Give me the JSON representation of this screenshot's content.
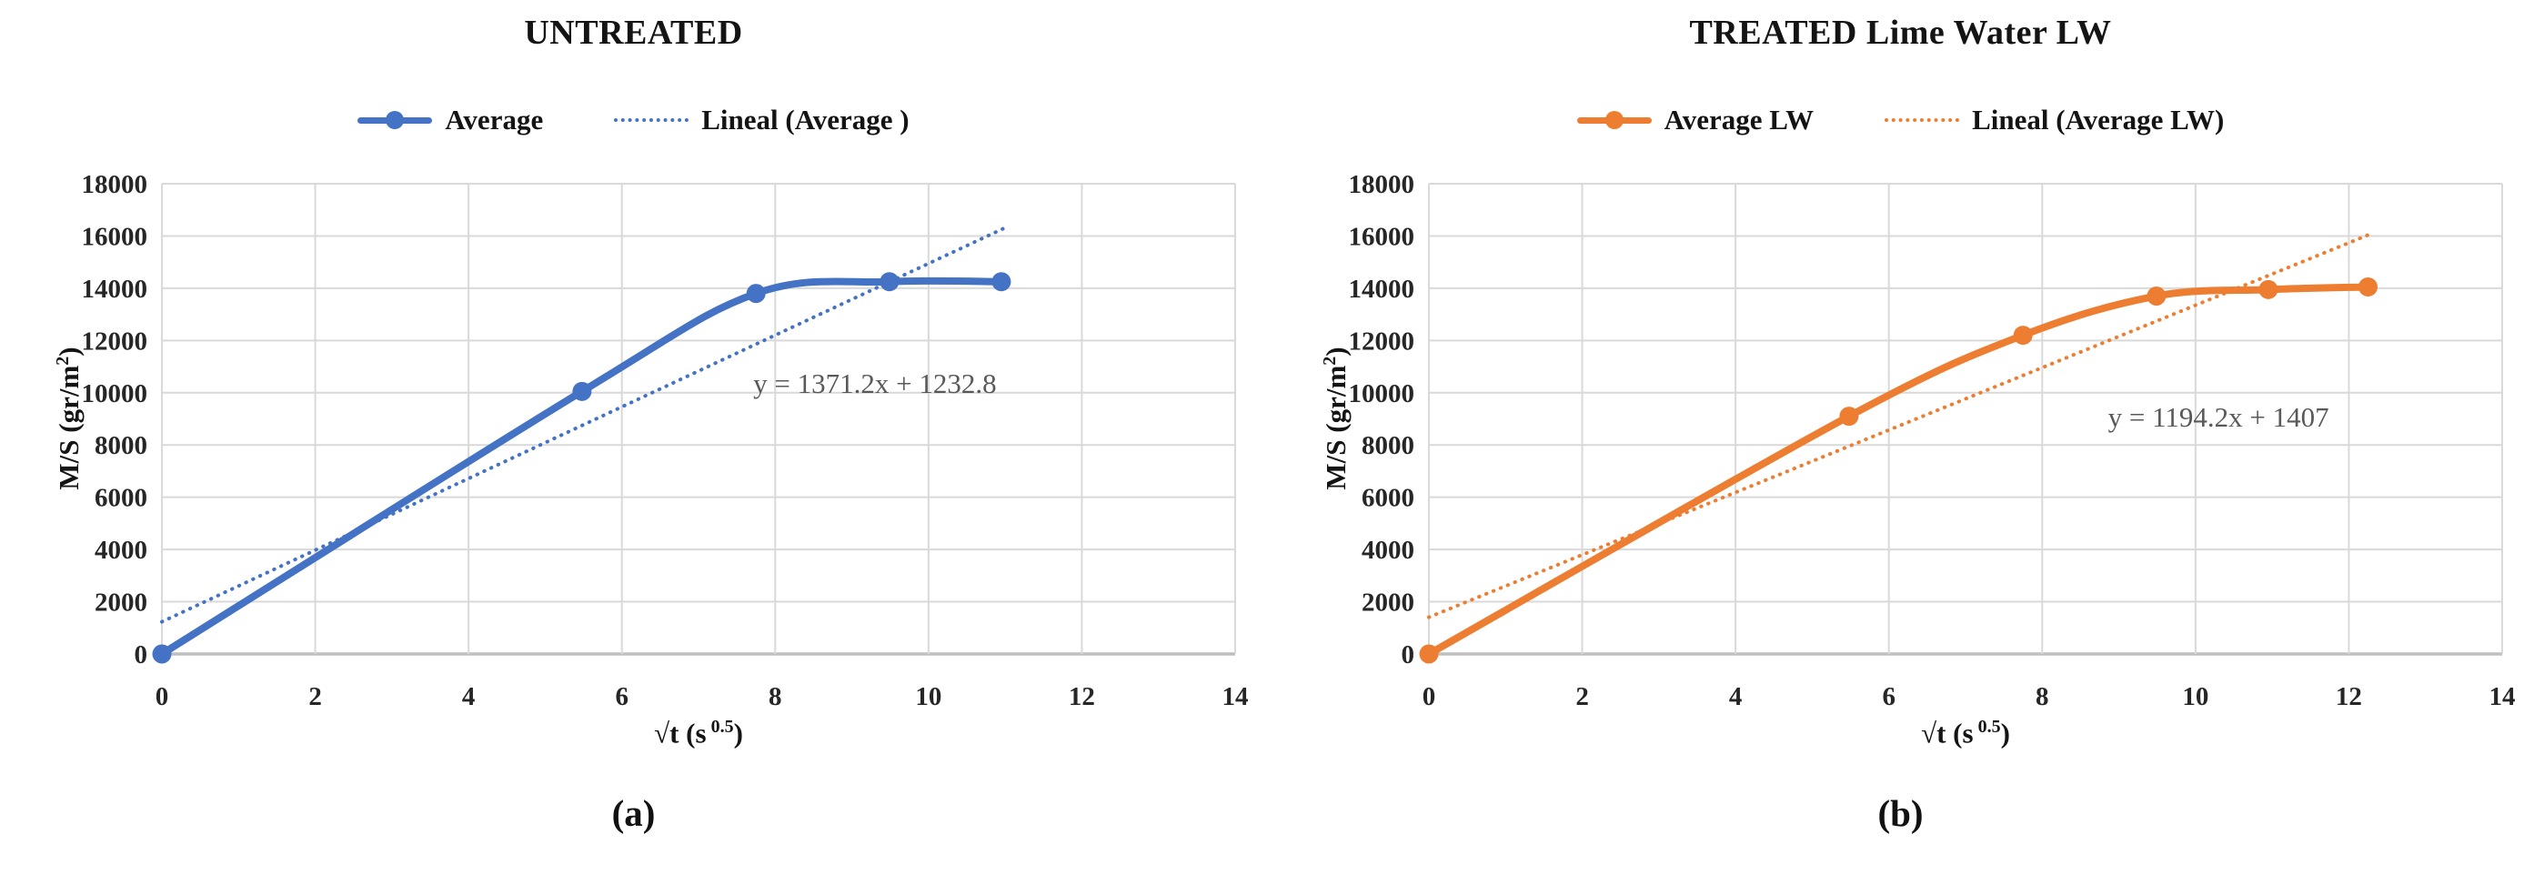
{
  "figure": {
    "background": "#ffffff"
  },
  "chart_data": [
    {
      "type": "line",
      "panel": "a",
      "title": "UNTREATED",
      "caption": "(a)",
      "xlabel": {
        "prefix": "√t (s",
        "sup": "0.5",
        "suffix": ")"
      },
      "ylabel": {
        "prefix": "M/S (gr/m",
        "sup": "2",
        "suffix": ")"
      },
      "xlim": [
        0,
        14
      ],
      "ylim": [
        0,
        18000
      ],
      "xticks": [
        0,
        2,
        4,
        6,
        8,
        10,
        12,
        14
      ],
      "yticks": [
        0,
        2000,
        4000,
        6000,
        8000,
        10000,
        12000,
        14000,
        16000,
        18000
      ],
      "grid": true,
      "legend_position": "top",
      "colors": {
        "series": "#4472C4",
        "grid": "#D9D9D9",
        "axis": "#BFBFBF",
        "annotation": "#595959"
      },
      "series": [
        {
          "name": "Average",
          "marker": "circle",
          "x": [
            0,
            5.48,
            7.75,
            9.49,
            10.95
          ],
          "y": [
            0,
            10050,
            13800,
            14250,
            14250
          ]
        }
      ],
      "trendline": {
        "name": "Lineal (Average )",
        "slope": 1371.2,
        "intercept": 1232.8,
        "x_range": [
          0,
          11.0
        ]
      },
      "annotation": {
        "text": "y = 1371.2x + 1232.8",
        "x": 9.3,
        "y": 10000
      }
    },
    {
      "type": "line",
      "panel": "b",
      "title": "TREATED Lime Water LW",
      "caption": "(b)",
      "xlabel": {
        "prefix": "√t (s",
        "sup": "0.5",
        "suffix": ")"
      },
      "ylabel": {
        "prefix": "M/S (gr/m",
        "sup": "2",
        "suffix": ")"
      },
      "xlim": [
        0,
        14
      ],
      "ylim": [
        0,
        18000
      ],
      "xticks": [
        0,
        2,
        4,
        6,
        8,
        10,
        12,
        14
      ],
      "yticks": [
        0,
        2000,
        4000,
        6000,
        8000,
        10000,
        12000,
        14000,
        16000,
        18000
      ],
      "grid": true,
      "legend_position": "top",
      "colors": {
        "series": "#ED7D31",
        "grid": "#D9D9D9",
        "axis": "#BFBFBF",
        "annotation": "#595959"
      },
      "series": [
        {
          "name": "Average LW",
          "marker": "circle",
          "x": [
            0,
            5.48,
            7.75,
            9.49,
            10.95,
            12.25
          ],
          "y": [
            0,
            9100,
            12200,
            13700,
            13950,
            14050
          ]
        }
      ],
      "trendline": {
        "name": "Lineal (Average LW)",
        "slope": 1194.2,
        "intercept": 1407,
        "x_range": [
          0,
          12.3
        ]
      },
      "annotation": {
        "text": "y = 1194.2x + 1407",
        "x": 10.3,
        "y": 8700
      }
    }
  ]
}
